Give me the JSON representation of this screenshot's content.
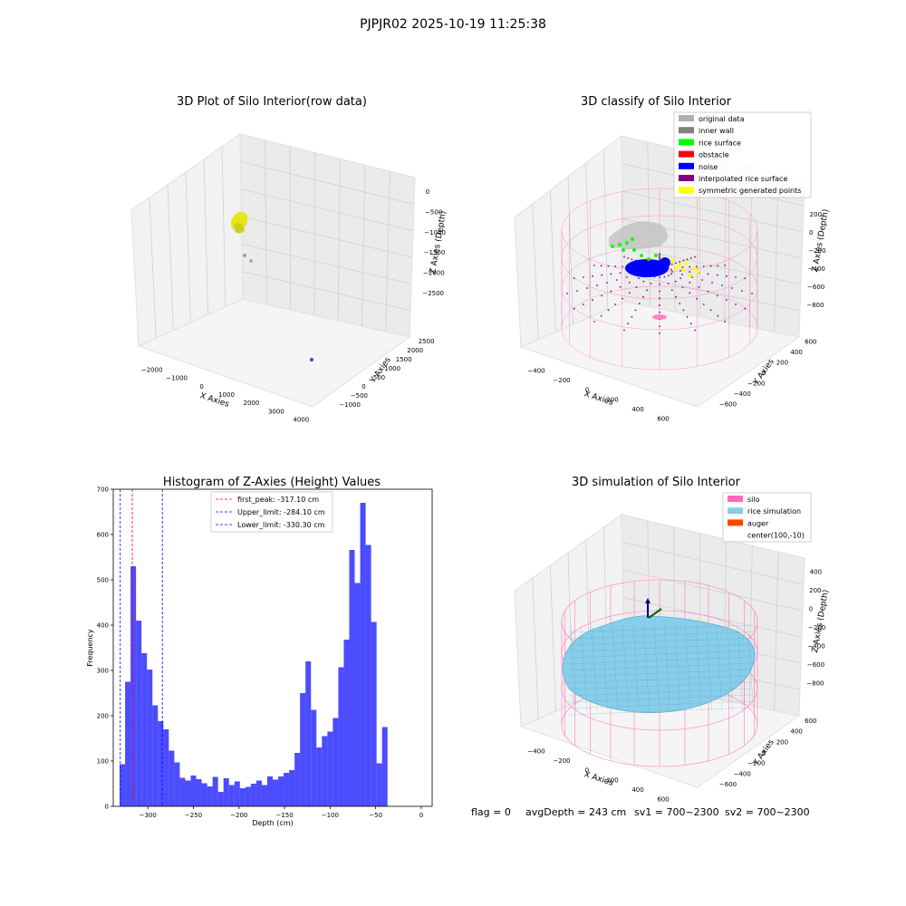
{
  "suptitle": "PJPJR02 2025-10-19 11:25:38",
  "footer": {
    "flag": "flag = 0",
    "avg": "avgDepth = 243 cm",
    "sv1": "sv1 = 700~2300",
    "sv2": "sv2 = 700~2300"
  },
  "chart_data": [
    {
      "type": "scatter",
      "title": "3D Plot of Silo Interior(row data)",
      "xlabel": "X Axies",
      "ylabel": "Y Axies",
      "zlabel": "Z Axies (Depth)",
      "x_ticks": [
        "−2000",
        "−1000",
        "0",
        "1000",
        "2000",
        "3000",
        "4000"
      ],
      "y_ticks": [
        "−1000",
        "−500",
        "0",
        "500",
        "1000",
        "1500",
        "2000",
        "2500"
      ],
      "z_ticks": [
        "0",
        "−500",
        "−1000",
        "−1500",
        "−2000",
        "−2500"
      ],
      "points_description_colors": {
        "main_cluster": "#e6e619",
        "outlier_gray": "#a0a0a0",
        "outlier_blue": "#3050c0"
      }
    },
    {
      "type": "scatter",
      "title": "3D classify of Silo Interior",
      "xlabel": "X Axies",
      "ylabel": "Y Axies",
      "zlabel": "Z Axies (Depth)",
      "x_ticks": [
        "−400",
        "−200",
        "0",
        "200",
        "400",
        "600"
      ],
      "y_ticks": [
        "−600",
        "−400",
        "−200",
        "0",
        "200",
        "400",
        "600"
      ],
      "z_ticks": [
        "200",
        "0",
        "−200",
        "−400",
        "−600",
        "−800"
      ],
      "z_ticks_extra": "00",
      "legend": [
        {
          "label": "original data",
          "color": "#b0b0b0"
        },
        {
          "label": "inner wall",
          "color": "#808080"
        },
        {
          "label": "rice surface",
          "color": "#00ff00"
        },
        {
          "label": "obstacle",
          "color": "#ff0000"
        },
        {
          "label": "noise",
          "color": "#0000ff"
        },
        {
          "label": "interpolated rice surface",
          "color": "#800080"
        },
        {
          "label": "symmetric generated points",
          "color": "#ffff00"
        }
      ]
    },
    {
      "type": "bar",
      "title": "Histogram of Z-Axies (Height) Values",
      "xlabel": "Depth (cm)",
      "ylabel": "Frequency",
      "xlim": [
        -338,
        12
      ],
      "ylim": [
        0,
        700
      ],
      "x_ticks": [
        -300,
        -250,
        -200,
        -150,
        -100,
        -50,
        0
      ],
      "y_ticks": [
        0,
        100,
        200,
        300,
        400,
        500,
        600,
        700
      ],
      "bin_start": -331,
      "bin_width": 6,
      "values": [
        93,
        275,
        530,
        410,
        338,
        302,
        223,
        188,
        170,
        123,
        97,
        63,
        57,
        68,
        60,
        51,
        44,
        65,
        32,
        62,
        47,
        55,
        40,
        43,
        50,
        57,
        47,
        66,
        59,
        66,
        74,
        80,
        118,
        250,
        320,
        213,
        130,
        155,
        165,
        195,
        307,
        368,
        566,
        493,
        670,
        577,
        407,
        95,
        175
      ],
      "bar_color": "#0000ff",
      "vlines": [
        {
          "x": -317.1,
          "color": "#ff0000",
          "label": "first_peak: -317.10 cm"
        },
        {
          "x": -284.1,
          "color": "#0000ff",
          "label": "Upper_limit: -284.10 cm"
        },
        {
          "x": -330.3,
          "color": "#0000ff",
          "label": "Lower_limit: -330.30 cm"
        }
      ]
    },
    {
      "type": "scatter",
      "title": "3D simulation of Silo Interior",
      "xlabel": "X Axies",
      "ylabel": "Y Axies",
      "zlabel": "Z Axies (Depth)",
      "x_ticks": [
        "−400",
        "−200",
        "0",
        "200",
        "400",
        "600"
      ],
      "y_ticks": [
        "−600",
        "−400",
        "−200",
        "0",
        "200",
        "400",
        "600"
      ],
      "z_ticks": [
        "400",
        "200",
        "0",
        "−200",
        "−400",
        "−600",
        "−800"
      ],
      "legend": [
        {
          "label": "silo",
          "color": "#ff69b4"
        },
        {
          "label": "rice simulation",
          "color": "#87ceeb"
        },
        {
          "label": "auger",
          "color": "#ff4500"
        },
        {
          "label": "center(100,-10)",
          "color": ""
        }
      ]
    }
  ]
}
